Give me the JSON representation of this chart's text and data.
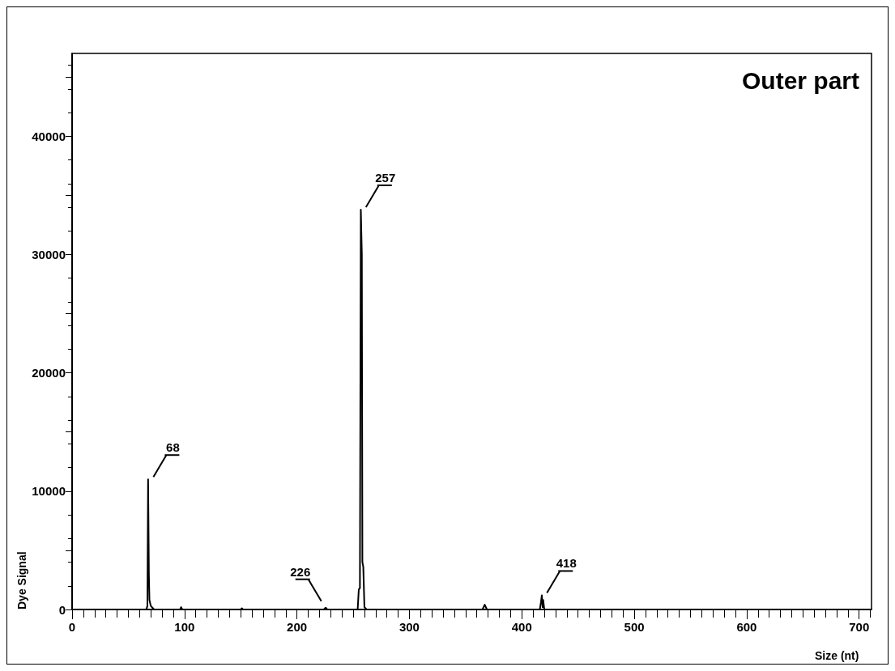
{
  "chart_data": {
    "type": "line",
    "title": "Outer part",
    "xlabel": "Size (nt)",
    "ylabel": "Dye Signal",
    "xlim": [
      0,
      711
    ],
    "xticks": [
      0,
      100,
      200,
      300,
      400,
      500,
      600,
      700
    ],
    "ylim": [
      0,
      47000
    ],
    "yticks": [
      0,
      {
        "value": 5000,
        "label": null
      },
      10000,
      {
        "value": 15000,
        "label": null
      },
      20000,
      {
        "value": 25000,
        "label": null
      },
      30000,
      {
        "value": 35000,
        "label": null
      },
      40000,
      {
        "value": 45000,
        "label": null
      }
    ],
    "marker": "none",
    "line_style": "solid",
    "series": [
      {
        "color": "#000000",
        "x": [
          57,
          66,
          67,
          67.6,
          68.3,
          68.8,
          70,
          73,
          96,
          97,
          98,
          150,
          151,
          152,
          224,
          225.5,
          227,
          254,
          255,
          256,
          256.8,
          257.7,
          258.2,
          259,
          260,
          262,
          365,
          367,
          369,
          416,
          417,
          417.8,
          418.5,
          419,
          420,
          711
        ],
        "values": [
          0,
          0,
          300,
          11000,
          3000,
          800,
          300,
          0,
          0,
          200,
          0,
          0,
          100,
          0,
          0,
          150,
          0,
          0,
          1700,
          1800,
          33800,
          30000,
          4000,
          3600,
          200,
          0,
          0,
          400,
          0,
          0,
          600,
          1200,
          200,
          800,
          0,
          0
        ]
      }
    ],
    "annotations": [
      {
        "text": "68",
        "x": 68,
        "y": 11000
      },
      {
        "text": "226",
        "x": 226,
        "y": 500
      },
      {
        "text": "257",
        "x": 257,
        "y": 33800
      },
      {
        "text": "418",
        "x": 418,
        "y": 1200
      }
    ]
  }
}
